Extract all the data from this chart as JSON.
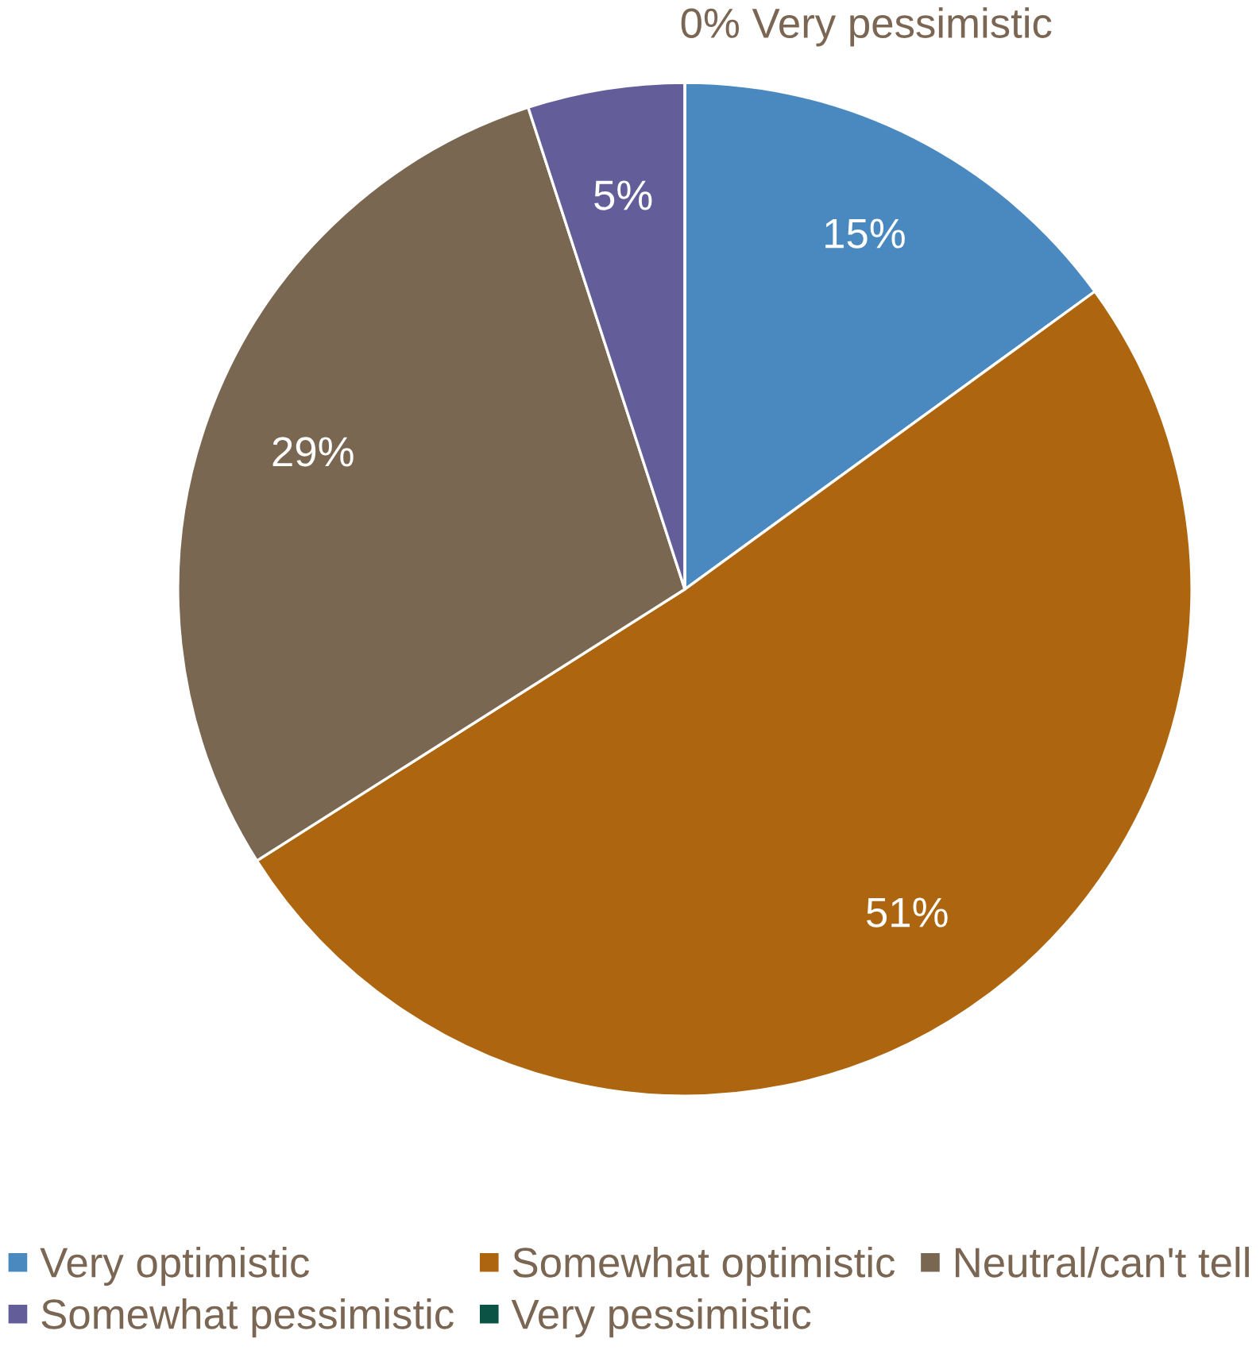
{
  "chart_data": {
    "type": "pie",
    "categories": [
      "Very optimistic",
      "Somewhat optimistic",
      "Neutral/can't tell",
      "Somewhat pessimistic",
      "Very pessimistic"
    ],
    "values": [
      15,
      51,
      29,
      5,
      0
    ],
    "colors": [
      "#4a89bf",
      "#ad660f",
      "#7a6752",
      "#635e9a",
      "#0b5345"
    ],
    "value_labels": [
      "15%",
      "51%",
      "29%",
      "5%",
      "0% Very pessimistic"
    ],
    "legend": "bottom"
  }
}
